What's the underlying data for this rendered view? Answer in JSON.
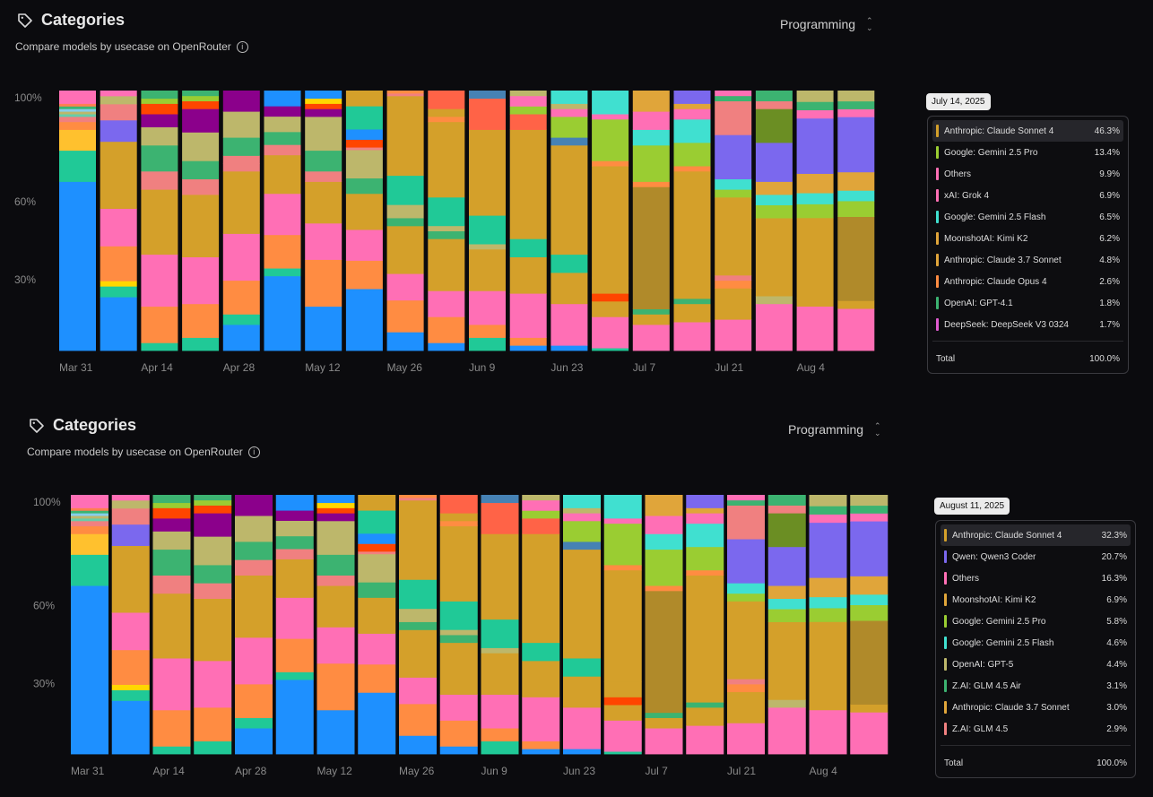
{
  "chart_data": [
    {
      "type": "bar",
      "stacked": true,
      "title": "Categories",
      "subtitle": "Compare models by usecase on OpenRouter",
      "category_select": "Programming",
      "yticks": [
        "100%",
        "60%",
        "30%"
      ],
      "xticks": [
        "Mar 31",
        "Apr 14",
        "Apr 28",
        "May 12",
        "May 26",
        "Jun 9",
        "Jun 23",
        "Jul 7",
        "Jul 21",
        "Aug 4"
      ],
      "bar_count": 20,
      "tooltip": {
        "date": "July 14, 2025",
        "highlighted_index": 0,
        "rows": [
          {
            "name": "Anthropic: Claude Sonnet 4",
            "value": "46.3%",
            "color": "#d4a02a"
          },
          {
            "name": "Google: Gemini 2.5 Pro",
            "value": "13.4%",
            "color": "#9acd32"
          },
          {
            "name": "Others",
            "value": "9.9%",
            "color": "#ff6fb5"
          },
          {
            "name": "xAI: Grok 4",
            "value": "6.9%",
            "color": "#ff6fb5"
          },
          {
            "name": "Google: Gemini 2.5 Flash",
            "value": "6.5%",
            "color": "#40e0d0"
          },
          {
            "name": "MoonshotAI: Kimi K2",
            "value": "6.2%",
            "color": "#e0a53a"
          },
          {
            "name": "Anthropic: Claude 3.7 Sonnet",
            "value": "4.8%",
            "color": "#e0a53a"
          },
          {
            "name": "Anthropic: Claude Opus 4",
            "value": "2.6%",
            "color": "#ff8c42"
          },
          {
            "name": "OpenAI: GPT-4.1",
            "value": "1.8%",
            "color": "#3cb371"
          },
          {
            "name": "DeepSeek: DeepSeek V3 0324",
            "value": "1.7%",
            "color": "#e05ad0"
          }
        ],
        "total_label": "Total",
        "total_value": "100.0%"
      }
    },
    {
      "type": "bar",
      "stacked": true,
      "title": "Categories",
      "subtitle": "Compare models by usecase on OpenRouter",
      "category_select": "Programming",
      "yticks": [
        "100%",
        "60%",
        "30%"
      ],
      "xticks": [
        "Mar 31",
        "Apr 14",
        "Apr 28",
        "May 12",
        "May 26",
        "Jun 9",
        "Jun 23",
        "Jul 7",
        "Jul 21",
        "Aug 4"
      ],
      "bar_count": 20,
      "tooltip": {
        "date": "August 11, 2025",
        "highlighted_index": 0,
        "rows": [
          {
            "name": "Anthropic: Claude Sonnet 4",
            "value": "32.3%",
            "color": "#d4a02a"
          },
          {
            "name": "Qwen: Qwen3 Coder",
            "value": "20.7%",
            "color": "#7b68ee"
          },
          {
            "name": "Others",
            "value": "16.3%",
            "color": "#ff6fb5"
          },
          {
            "name": "MoonshotAI: Kimi K2",
            "value": "6.9%",
            "color": "#e0a53a"
          },
          {
            "name": "Google: Gemini 2.5 Pro",
            "value": "5.8%",
            "color": "#9acd32"
          },
          {
            "name": "Google: Gemini 2.5 Flash",
            "value": "4.6%",
            "color": "#40e0d0"
          },
          {
            "name": "OpenAI: GPT-5",
            "value": "4.4%",
            "color": "#bdb76b"
          },
          {
            "name": "Z.AI: GLM 4.5 Air",
            "value": "3.1%",
            "color": "#3cb371"
          },
          {
            "name": "Anthropic: Claude 3.7 Sonnet",
            "value": "3.0%",
            "color": "#e0a53a"
          },
          {
            "name": "Z.AI: GLM 4.5",
            "value": "2.9%",
            "color": "#f08080"
          }
        ],
        "total_label": "Total",
        "total_value": "100.0%"
      }
    }
  ],
  "stacks": [
    [
      [
        65,
        "#1e90ff"
      ],
      [
        12,
        "#20c997"
      ],
      [
        8,
        "#ffc12e"
      ],
      [
        3,
        "#ff8c42"
      ],
      [
        2,
        "#f08080"
      ],
      [
        1,
        "#66cdaa"
      ],
      [
        1,
        "#bdb76b"
      ],
      [
        1,
        "#87ceeb"
      ],
      [
        1,
        "#3cb371"
      ],
      [
        1,
        "#ff7f50"
      ],
      [
        5,
        "#ff6fb5"
      ]
    ],
    [
      [
        20,
        "#1e90ff"
      ],
      [
        4,
        "#20c997"
      ],
      [
        2,
        "#ffd700"
      ],
      [
        13,
        "#ff8c42"
      ],
      [
        14,
        "#ff6fb5"
      ],
      [
        25,
        "#d4a02a"
      ],
      [
        8,
        "#7b68ee"
      ],
      [
        6,
        "#f08080"
      ],
      [
        3,
        "#bdb76b"
      ],
      [
        2,
        "#ff6fb5"
      ]
    ],
    [
      [
        3,
        "#20c997"
      ],
      [
        14,
        "#ff8c42"
      ],
      [
        20,
        "#ff6fb5"
      ],
      [
        25,
        "#d4a02a"
      ],
      [
        7,
        "#f08080"
      ],
      [
        10,
        "#3cb371"
      ],
      [
        7,
        "#bdb76b"
      ],
      [
        5,
        "#8b008b"
      ],
      [
        4,
        "#ff4500"
      ],
      [
        2,
        "#9acd32"
      ],
      [
        3,
        "#3cb371"
      ]
    ],
    [
      [
        5,
        "#20c997"
      ],
      [
        13,
        "#ff8c42"
      ],
      [
        18,
        "#ff6fb5"
      ],
      [
        24,
        "#d4a02a"
      ],
      [
        6,
        "#f08080"
      ],
      [
        7,
        "#3cb371"
      ],
      [
        11,
        "#bdb76b"
      ],
      [
        9,
        "#8b008b"
      ],
      [
        3,
        "#ff4500"
      ],
      [
        2,
        "#9acd32"
      ],
      [
        2,
        "#3cb371"
      ]
    ],
    [
      [
        10,
        "#1e90ff"
      ],
      [
        4,
        "#20c997"
      ],
      [
        13,
        "#ff8c42"
      ],
      [
        18,
        "#ff6fb5"
      ],
      [
        24,
        "#d4a02a"
      ],
      [
        3,
        "#f08080"
      ],
      [
        3,
        "#f08080"
      ],
      [
        7,
        "#3cb371"
      ],
      [
        10,
        "#bdb76b"
      ],
      [
        8,
        "#8b008b"
      ]
    ],
    [
      [
        29,
        "#1e90ff"
      ],
      [
        3,
        "#20c997"
      ],
      [
        13,
        "#ff8c42"
      ],
      [
        16,
        "#ff6fb5"
      ],
      [
        15,
        "#d4a02a"
      ],
      [
        4,
        "#f08080"
      ],
      [
        5,
        "#3cb371"
      ],
      [
        6,
        "#bdb76b"
      ],
      [
        4,
        "#8b008b"
      ],
      [
        6,
        "#1e90ff"
      ]
    ],
    [
      [
        17,
        "#1e90ff"
      ],
      [
        18,
        "#ff8c42"
      ],
      [
        14,
        "#ff6fb5"
      ],
      [
        16,
        "#d4a02a"
      ],
      [
        4,
        "#f08080"
      ],
      [
        8,
        "#3cb371"
      ],
      [
        13,
        "#bdb76b"
      ],
      [
        3,
        "#8b008b"
      ],
      [
        2,
        "#ff4500"
      ],
      [
        2,
        "#ffd700"
      ],
      [
        3,
        "#1e90ff"
      ]
    ],
    [
      [
        24,
        "#1e90ff"
      ],
      [
        11,
        "#ff8c42"
      ],
      [
        12,
        "#ff6fb5"
      ],
      [
        14,
        "#d4a02a"
      ],
      [
        6,
        "#3cb371"
      ],
      [
        11,
        "#bdb76b"
      ],
      [
        1,
        "#f08080"
      ],
      [
        3,
        "#ff4500"
      ],
      [
        4,
        "#1e90ff"
      ],
      [
        9,
        "#20c997"
      ],
      [
        6,
        "#d4a02a"
      ]
    ],
    [
      [
        7,
        "#1e90ff"
      ],
      [
        12,
        "#ff8c42"
      ],
      [
        10,
        "#ff6fb5"
      ],
      [
        18,
        "#d4a02a"
      ],
      [
        3,
        "#3cb371"
      ],
      [
        5,
        "#bdb76b"
      ],
      [
        11,
        "#20c997"
      ],
      [
        30,
        "#d4a02a"
      ],
      [
        1,
        "#f08080"
      ],
      [
        1,
        "#ff8c42"
      ]
    ],
    [
      [
        3,
        "#1e90ff"
      ],
      [
        10,
        "#ff8c42"
      ],
      [
        10,
        "#ff6fb5"
      ],
      [
        20,
        "#d4a02a"
      ],
      [
        3,
        "#3cb371"
      ],
      [
        2,
        "#bdb76b"
      ],
      [
        11,
        "#20c997"
      ],
      [
        29,
        "#d4a02a"
      ],
      [
        2,
        "#ff8c42"
      ],
      [
        3,
        "#d4a02a"
      ],
      [
        7,
        "#ff6347"
      ]
    ],
    [
      [
        5,
        "#20c997"
      ],
      [
        5,
        "#ff8c42"
      ],
      [
        13,
        "#ff6fb5"
      ],
      [
        16,
        "#d4a02a"
      ],
      [
        2,
        "#bdb76b"
      ],
      [
        11,
        "#20c997"
      ],
      [
        33,
        "#d4a02a"
      ],
      [
        12,
        "#ff6347"
      ],
      [
        3,
        "#4682b4"
      ]
    ],
    [
      [
        2,
        "#1e90ff"
      ],
      [
        3,
        "#ff8c42"
      ],
      [
        17,
        "#ff6fb5"
      ],
      [
        14,
        "#d4a02a"
      ],
      [
        7,
        "#20c997"
      ],
      [
        42,
        "#d4a02a"
      ],
      [
        6,
        "#ff6347"
      ],
      [
        3,
        "#9acd32"
      ],
      [
        4,
        "#ff6fb5"
      ],
      [
        2,
        "#bdb76b"
      ]
    ],
    [
      [
        2,
        "#1e90ff"
      ],
      [
        16,
        "#ff6fb5"
      ],
      [
        12,
        "#d4a02a"
      ],
      [
        7,
        "#20c997"
      ],
      [
        42,
        "#d4a02a"
      ],
      [
        3,
        "#4682b4"
      ],
      [
        8,
        "#9acd32"
      ],
      [
        3,
        "#ff6fb5"
      ],
      [
        2,
        "#bdb76b"
      ],
      [
        5,
        "#40e0d0"
      ]
    ],
    [
      [
        1,
        "#20c997"
      ],
      [
        12,
        "#ff6fb5"
      ],
      [
        6,
        "#d4a02a"
      ],
      [
        3,
        "#ff4500"
      ],
      [
        6,
        "#d4a02a"
      ],
      [
        43,
        "#d4a02a"
      ],
      [
        2,
        "#ff8c42"
      ],
      [
        16,
        "#9acd32"
      ],
      [
        2,
        "#ff6fb5"
      ],
      [
        9,
        "#40e0d0"
      ]
    ],
    [
      [
        10,
        "#ff6fb5"
      ],
      [
        4,
        "#d4a02a"
      ],
      [
        2,
        "#3cb371"
      ],
      [
        47,
        "#b08a2a"
      ],
      [
        2,
        "#ff8c42"
      ],
      [
        14,
        "#9acd32"
      ],
      [
        6,
        "#40e0d0"
      ],
      [
        7,
        "#ff6fb5"
      ],
      [
        8,
        "#e0a53a"
      ]
    ],
    [
      [
        11,
        "#ff6fb5"
      ],
      [
        7,
        "#d4a02a"
      ],
      [
        2,
        "#3cb371"
      ],
      [
        49,
        "#d4a02a"
      ],
      [
        2,
        "#ff8c42"
      ],
      [
        9,
        "#9acd32"
      ],
      [
        9,
        "#40e0d0"
      ],
      [
        4,
        "#ff6fb5"
      ],
      [
        2,
        "#e0a53a"
      ],
      [
        5,
        "#7b68ee"
      ]
    ],
    [
      [
        12,
        "#ff6fb5"
      ],
      [
        12,
        "#d4a02a"
      ],
      [
        3,
        "#ff8c42"
      ],
      [
        2,
        "#f08080"
      ],
      [
        30,
        "#d4a02a"
      ],
      [
        3,
        "#9acd32"
      ],
      [
        4,
        "#40e0d0"
      ],
      [
        17,
        "#7b68ee"
      ],
      [
        13,
        "#f08080"
      ],
      [
        2,
        "#3cb371"
      ],
      [
        2,
        "#ff6fb5"
      ]
    ],
    [
      [
        18,
        "#ff6fb5"
      ],
      [
        3,
        "#bdb76b"
      ],
      [
        30,
        "#d4a02a"
      ],
      [
        5,
        "#9acd32"
      ],
      [
        4,
        "#40e0d0"
      ],
      [
        5,
        "#e0a53a"
      ],
      [
        15,
        "#7b68ee"
      ],
      [
        13,
        "#6b8e23"
      ],
      [
        3,
        "#f08080"
      ],
      [
        4,
        "#3cb371"
      ]
    ],
    [
      [
        16,
        "#ff6fb5"
      ],
      [
        3,
        "#d4a02a"
      ],
      [
        29,
        "#d4a02a"
      ],
      [
        5,
        "#9acd32"
      ],
      [
        4,
        "#40e0d0"
      ],
      [
        7,
        "#e0a53a"
      ],
      [
        20,
        "#7b68ee"
      ],
      [
        3,
        "#ff6fb5"
      ],
      [
        3,
        "#3cb371"
      ],
      [
        4,
        "#bdb76b"
      ]
    ],
    [
      [
        16,
        "#ff6fb5"
      ],
      [
        3,
        "#d4a02a"
      ],
      [
        32,
        "#b08a2a"
      ],
      [
        6,
        "#9acd32"
      ],
      [
        4,
        "#40e0d0"
      ],
      [
        7,
        "#e0a53a"
      ],
      [
        21,
        "#7b68ee"
      ],
      [
        3,
        "#ff6fb5"
      ],
      [
        3,
        "#3cb371"
      ],
      [
        4,
        "#bdb76b"
      ]
    ]
  ]
}
